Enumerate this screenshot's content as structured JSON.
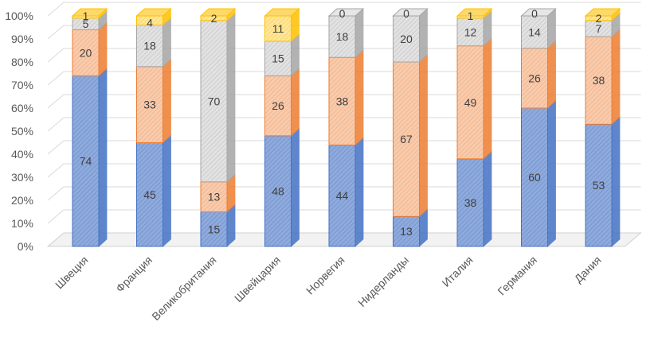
{
  "chart_data": {
    "type": "bar",
    "stacked": true,
    "percent": true,
    "style": "3d-column",
    "categories": [
      "Швеция",
      "Франция",
      "Великобритания",
      "Швейцария",
      "Норвегия",
      "Нидерланды",
      "Италия",
      "Германия",
      "Дания"
    ],
    "series": [
      {
        "name": "series-1",
        "color": "#8FAADC",
        "edge": "#4472C4",
        "values": [
          74,
          45,
          15,
          48,
          44,
          13,
          38,
          60,
          53
        ]
      },
      {
        "name": "series-2",
        "color": "#F8CBAD",
        "edge": "#ED7D31",
        "values": [
          20,
          33,
          13,
          26,
          38,
          67,
          49,
          26,
          38
        ]
      },
      {
        "name": "series-3",
        "color": "#D9D9D9",
        "edge": "#A5A5A5",
        "values": [
          5,
          18,
          70,
          15,
          18,
          20,
          12,
          14,
          7
        ]
      },
      {
        "name": "series-4",
        "color": "#FFE699",
        "edge": "#FFC000",
        "values": [
          1,
          4,
          2,
          11,
          0,
          0,
          1,
          0,
          2
        ]
      }
    ],
    "yticks": [
      "0%",
      "10%",
      "20%",
      "30%",
      "40%",
      "50%",
      "60%",
      "70%",
      "80%",
      "90%",
      "100%"
    ],
    "ylim": [
      0,
      100
    ],
    "title": "",
    "xlabel": "",
    "ylabel": "",
    "legend": "none"
  }
}
